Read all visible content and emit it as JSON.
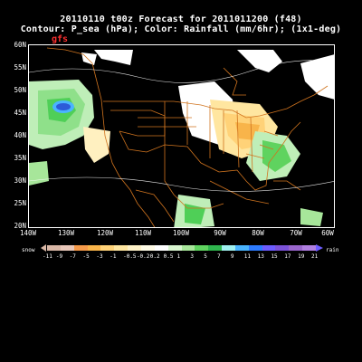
{
  "title_line1": "20110110 t00z Forecast for 2011011200 (f48)",
  "title_line2": "Contour: P_sea (hPa); Color: Rainfall (mm/6hr); (1x1-deg)",
  "model_tag": "gfs",
  "lat_labels": [
    "60N",
    "55N",
    "50N",
    "45N",
    "40N",
    "35N",
    "30N",
    "25N",
    "20N"
  ],
  "lon_labels": [
    "140W",
    "130W",
    "120W",
    "110W",
    "100W",
    "90W",
    "80W",
    "70W",
    "60W"
  ],
  "colorbar": {
    "left_label": "snow",
    "right_label": "rain",
    "tick_labels": [
      "-11",
      "-9",
      "-7",
      "-5",
      "-3",
      "-1",
      "-0.5",
      "-0.2",
      "0.2",
      "0.5",
      "1",
      "3",
      "5",
      "7",
      "9",
      "11",
      "13",
      "15",
      "17",
      "19",
      "21"
    ],
    "colors": [
      "#d9b7a6",
      "#e8c7b9",
      "#f59a4a",
      "#f8b44a",
      "#ffd278",
      "#ffe6a0",
      "#fff2c8",
      "#fffbe6",
      "#ffffff",
      "#d8f5cf",
      "#a7e69a",
      "#5fd35f",
      "#2fb54d",
      "#a0f0f0",
      "#4ab4ff",
      "#2d7bff",
      "#6d5cff",
      "#7b52d8",
      "#9966cc",
      "#b07fe0"
    ]
  }
}
